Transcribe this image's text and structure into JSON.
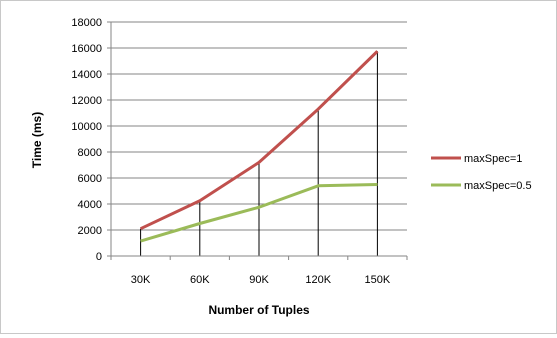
{
  "chart_data": {
    "type": "line",
    "xlabel": "Number of Tuples",
    "ylabel": "Time (ms)",
    "categories": [
      "30K",
      "60K",
      "90K",
      "120K",
      "150K"
    ],
    "ylim": [
      0,
      18000
    ],
    "ytick_step": 2000,
    "yticks": [
      "0",
      "2000",
      "4000",
      "6000",
      "8000",
      "10000",
      "12000",
      "14000",
      "16000",
      "18000"
    ],
    "grid": "horizontal",
    "drop_lines": true,
    "legend": "right",
    "series": [
      {
        "name": "maxSpec=1",
        "color": "#c0504d",
        "values": [
          2100,
          4250,
          7200,
          11300,
          15750
        ]
      },
      {
        "name": "maxSpec=0.5",
        "color": "#9bbb59",
        "values": [
          1150,
          2500,
          3750,
          5400,
          5500
        ]
      }
    ]
  }
}
